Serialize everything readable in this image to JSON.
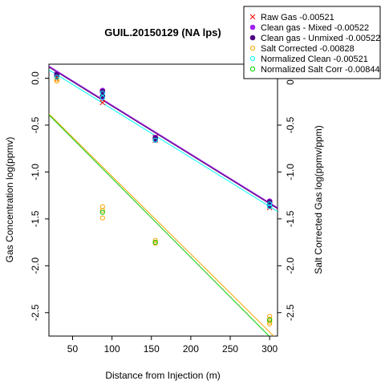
{
  "chart_data": {
    "type": "scatter",
    "title": "GUIL.20150129 (NA lps)",
    "xlabel": "Distance from Injection (m)",
    "ylabel": "Gas Concentration log(ppmv)",
    "ylabel_right": "Salt Corrected Gas log(ppmv/ppm)",
    "xlim": [
      20,
      310
    ],
    "ylim": [
      -2.75,
      0.15
    ],
    "x_ticks": [
      50,
      100,
      150,
      200,
      250,
      300
    ],
    "x_tick_labels": [
      "50",
      "100",
      "150",
      "200",
      "250",
      "300"
    ],
    "y_ticks": [
      0,
      -0.5,
      -1,
      -1.5,
      -2,
      -2.5
    ],
    "y_tick_labels": [
      "0.0",
      "-0.5",
      "-1.0",
      "-1.5",
      "-2.0",
      "-2.5"
    ],
    "legend_position": "top-right",
    "series": [
      {
        "name": "Raw Gas -0.00521",
        "color": "#ff0000",
        "marker": "x",
        "x": [
          30,
          30,
          30,
          88,
          88,
          88,
          88,
          155,
          155,
          155,
          300,
          300,
          300,
          300
        ],
        "y": [
          0.04,
          0.02,
          -0.01,
          -0.14,
          -0.18,
          -0.22,
          -0.26,
          -0.63,
          -0.64,
          -0.66,
          -1.32,
          -1.34,
          -1.36,
          -1.38
        ],
        "fit": {
          "x": [
            20,
            310
          ],
          "y": [
            0.12,
            -1.39
          ]
        }
      },
      {
        "name": "Clean gas - Mixed -0.00522",
        "color": "#a020f0",
        "marker": "circle-filled",
        "x": [
          30,
          30,
          88,
          88,
          88,
          155,
          155,
          300,
          300,
          300
        ],
        "y": [
          0.05,
          0.03,
          -0.13,
          -0.15,
          -0.2,
          -0.63,
          -0.65,
          -1.31,
          -1.33,
          -1.35
        ],
        "fit": {
          "x": [
            20,
            310
          ],
          "y": [
            0.13,
            -1.38
          ]
        }
      },
      {
        "name": "Clean gas - Unmixed -0.00522",
        "color": "#4b0082",
        "marker": "circle-filled",
        "x": [
          30,
          30,
          88,
          88,
          155,
          155,
          300,
          300,
          300
        ],
        "y": [
          0.04,
          0.02,
          -0.14,
          -0.19,
          -0.64,
          -0.66,
          -1.32,
          -1.34,
          -1.36
        ],
        "fit": {
          "x": [
            20,
            310
          ],
          "y": [
            0.12,
            -1.39
          ]
        }
      },
      {
        "name": "Salt Corrected -0.00828",
        "color": "#ffa500",
        "marker": "circle-open",
        "x": [
          30,
          30,
          88,
          88,
          88,
          155,
          155,
          155,
          300,
          300,
          300,
          300
        ],
        "y": [
          -0.01,
          -0.03,
          -1.37,
          -1.41,
          -1.49,
          -1.73,
          -1.75,
          -1.76,
          -2.54,
          -2.57,
          -2.6,
          -2.62
        ],
        "fit": {
          "x": [
            20,
            310
          ],
          "y": [
            -0.38,
            -2.79
          ]
        }
      },
      {
        "name": "Normalized Clean -0.00521",
        "color": "#00ffff",
        "marker": "circle-open",
        "x": [
          30,
          88,
          88,
          155,
          300,
          300
        ],
        "y": [
          0.01,
          -0.16,
          -0.21,
          -0.66,
          -1.34,
          -1.37
        ],
        "fit": {
          "x": [
            20,
            310
          ],
          "y": [
            0.09,
            -1.42
          ]
        }
      },
      {
        "name": "Normalized Salt Corr -0.00844",
        "color": "#00cc00",
        "marker": "circle-open",
        "x": [
          88,
          155,
          300
        ],
        "y": [
          -1.43,
          -1.75,
          -2.58
        ],
        "fit": {
          "x": [
            20,
            310
          ],
          "y": [
            -0.39,
            -2.84
          ]
        }
      }
    ]
  }
}
